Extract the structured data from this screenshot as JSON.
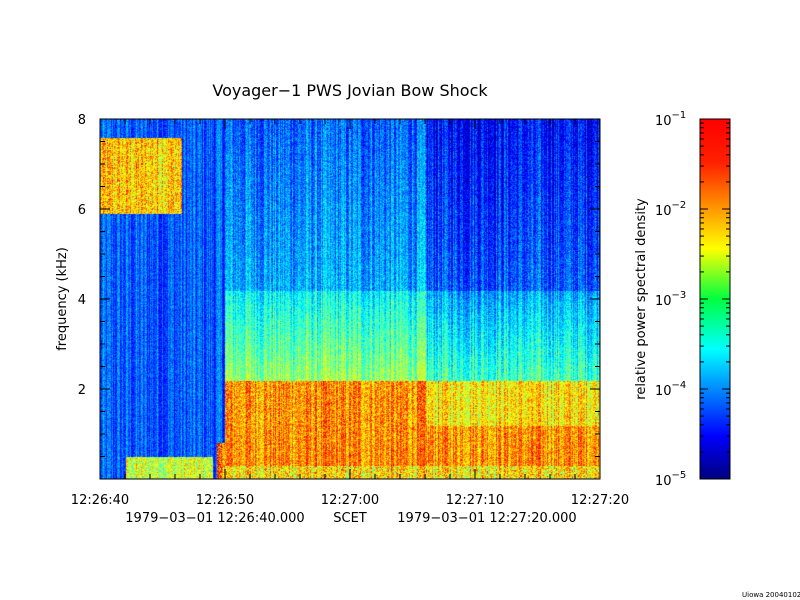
{
  "chart_data": {
    "type": "heatmap",
    "title": "Voyager−1 PWS Jovian Bow Shock",
    "ylabel": "frequency (kHz)",
    "x_ticks": [
      "12:26:40",
      "12:26:50",
      "12:27:00",
      "12:27:10",
      "12:27:20"
    ],
    "x_start_label": "1979−03−01 12:26:40.000",
    "x_center_label": "SCET",
    "x_end_label": "1979−03−01 12:27:20.000",
    "y_ticks": [
      2,
      4,
      6,
      8
    ],
    "ylim": [
      0,
      8
    ],
    "colorbar": {
      "label": "relative power spectral density",
      "scale": "log",
      "ticks": [
        {
          "base": "10",
          "exp": "−1",
          "value": 0.1
        },
        {
          "base": "10",
          "exp": "−2",
          "value": 0.01
        },
        {
          "base": "10",
          "exp": "−3",
          "value": 0.001
        },
        {
          "base": "10",
          "exp": "−4",
          "value": 0.0001
        },
        {
          "base": "10",
          "exp": "−5",
          "value": 1e-05
        }
      ],
      "range": [
        1e-05,
        0.1
      ]
    }
  },
  "footer_credit": "Uiowa 20040102"
}
